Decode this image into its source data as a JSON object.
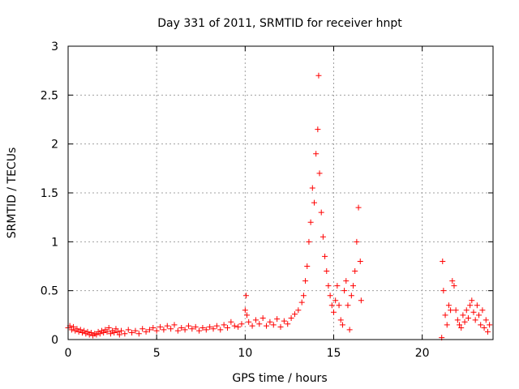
{
  "chart_data": {
    "type": "scatter",
    "title": "Day 331 of 2011, SRMTID for receiver hnpt",
    "xlabel": "GPS time / hours",
    "ylabel": "SRMTID / TECUs",
    "xlim": [
      0,
      24
    ],
    "ylim": [
      0,
      3
    ],
    "x_ticks": [
      0,
      5,
      10,
      15,
      20
    ],
    "y_ticks": [
      0,
      0.5,
      1,
      1.5,
      2,
      2.5,
      3
    ],
    "x_tick_labels": [
      "0",
      "5",
      "10",
      "15",
      "20"
    ],
    "y_tick_labels": [
      "0",
      "0.5",
      "1",
      "1.5",
      "2",
      "2.5",
      "3"
    ],
    "grid": true,
    "marker": "+",
    "series": [
      {
        "color": "#ff0000",
        "points": [
          [
            0.0,
            0.12
          ],
          [
            0.1,
            0.14
          ],
          [
            0.2,
            0.1
          ],
          [
            0.3,
            0.13
          ],
          [
            0.4,
            0.09
          ],
          [
            0.5,
            0.11
          ],
          [
            0.6,
            0.08
          ],
          [
            0.7,
            0.1
          ],
          [
            0.8,
            0.07
          ],
          [
            0.9,
            0.09
          ],
          [
            1.0,
            0.06
          ],
          [
            1.1,
            0.08
          ],
          [
            1.2,
            0.05
          ],
          [
            1.3,
            0.07
          ],
          [
            1.4,
            0.04
          ],
          [
            1.5,
            0.06
          ],
          [
            1.6,
            0.05
          ],
          [
            1.7,
            0.08
          ],
          [
            1.8,
            0.06
          ],
          [
            1.9,
            0.09
          ],
          [
            2.0,
            0.07
          ],
          [
            2.1,
            0.1
          ],
          [
            2.2,
            0.08
          ],
          [
            2.3,
            0.12
          ],
          [
            2.4,
            0.06
          ],
          [
            2.5,
            0.09
          ],
          [
            2.6,
            0.07
          ],
          [
            2.7,
            0.11
          ],
          [
            2.8,
            0.08
          ],
          [
            2.9,
            0.05
          ],
          [
            3.0,
            0.09
          ],
          [
            3.2,
            0.06
          ],
          [
            3.4,
            0.1
          ],
          [
            3.6,
            0.07
          ],
          [
            3.8,
            0.09
          ],
          [
            4.0,
            0.06
          ],
          [
            4.2,
            0.11
          ],
          [
            4.4,
            0.08
          ],
          [
            4.6,
            0.1
          ],
          [
            4.8,
            0.12
          ],
          [
            5.0,
            0.09
          ],
          [
            5.2,
            0.13
          ],
          [
            5.4,
            0.1
          ],
          [
            5.6,
            0.14
          ],
          [
            5.8,
            0.11
          ],
          [
            6.0,
            0.15
          ],
          [
            6.2,
            0.09
          ],
          [
            6.4,
            0.12
          ],
          [
            6.6,
            0.1
          ],
          [
            6.8,
            0.14
          ],
          [
            7.0,
            0.11
          ],
          [
            7.2,
            0.13
          ],
          [
            7.4,
            0.09
          ],
          [
            7.6,
            0.12
          ],
          [
            7.8,
            0.1
          ],
          [
            8.0,
            0.13
          ],
          [
            8.2,
            0.11
          ],
          [
            8.4,
            0.14
          ],
          [
            8.6,
            0.1
          ],
          [
            8.8,
            0.15
          ],
          [
            9.0,
            0.12
          ],
          [
            9.2,
            0.18
          ],
          [
            9.4,
            0.14
          ],
          [
            9.6,
            0.13
          ],
          [
            9.8,
            0.16
          ],
          [
            10.0,
            0.3
          ],
          [
            10.05,
            0.45
          ],
          [
            10.1,
            0.25
          ],
          [
            10.2,
            0.18
          ],
          [
            10.4,
            0.14
          ],
          [
            10.6,
            0.2
          ],
          [
            10.8,
            0.16
          ],
          [
            11.0,
            0.22
          ],
          [
            11.2,
            0.14
          ],
          [
            11.4,
            0.18
          ],
          [
            11.6,
            0.15
          ],
          [
            11.8,
            0.21
          ],
          [
            12.0,
            0.13
          ],
          [
            12.2,
            0.19
          ],
          [
            12.4,
            0.16
          ],
          [
            12.6,
            0.22
          ],
          [
            12.8,
            0.26
          ],
          [
            13.0,
            0.3
          ],
          [
            13.2,
            0.38
          ],
          [
            13.3,
            0.45
          ],
          [
            13.4,
            0.6
          ],
          [
            13.5,
            0.75
          ],
          [
            13.6,
            1.0
          ],
          [
            13.7,
            1.2
          ],
          [
            13.8,
            1.55
          ],
          [
            13.9,
            1.4
          ],
          [
            14.0,
            1.9
          ],
          [
            14.1,
            2.15
          ],
          [
            14.15,
            2.7
          ],
          [
            14.2,
            1.7
          ],
          [
            14.3,
            1.3
          ],
          [
            14.4,
            1.05
          ],
          [
            14.5,
            0.85
          ],
          [
            14.6,
            0.7
          ],
          [
            14.7,
            0.55
          ],
          [
            14.8,
            0.45
          ],
          [
            14.9,
            0.35
          ],
          [
            15.0,
            0.28
          ],
          [
            15.1,
            0.4
          ],
          [
            15.2,
            0.55
          ],
          [
            15.3,
            0.35
          ],
          [
            15.4,
            0.2
          ],
          [
            15.5,
            0.15
          ],
          [
            15.6,
            0.5
          ],
          [
            15.7,
            0.6
          ],
          [
            15.8,
            0.35
          ],
          [
            15.9,
            0.1
          ],
          [
            16.0,
            0.45
          ],
          [
            16.1,
            0.55
          ],
          [
            16.2,
            0.7
          ],
          [
            16.3,
            1.0
          ],
          [
            16.4,
            1.35
          ],
          [
            16.5,
            0.8
          ],
          [
            16.55,
            0.4
          ],
          [
            21.1,
            0.02
          ],
          [
            21.15,
            0.8
          ],
          [
            21.2,
            0.5
          ],
          [
            21.3,
            0.25
          ],
          [
            21.4,
            0.15
          ],
          [
            21.5,
            0.35
          ],
          [
            21.6,
            0.3
          ],
          [
            21.7,
            0.6
          ],
          [
            21.8,
            0.55
          ],
          [
            21.9,
            0.3
          ],
          [
            22.0,
            0.2
          ],
          [
            22.1,
            0.15
          ],
          [
            22.2,
            0.12
          ],
          [
            22.3,
            0.25
          ],
          [
            22.4,
            0.18
          ],
          [
            22.5,
            0.3
          ],
          [
            22.6,
            0.22
          ],
          [
            22.7,
            0.35
          ],
          [
            22.8,
            0.4
          ],
          [
            22.9,
            0.28
          ],
          [
            23.0,
            0.2
          ],
          [
            23.1,
            0.35
          ],
          [
            23.2,
            0.25
          ],
          [
            23.3,
            0.15
          ],
          [
            23.4,
            0.3
          ],
          [
            23.5,
            0.12
          ],
          [
            23.6,
            0.2
          ],
          [
            23.7,
            0.08
          ],
          [
            23.8,
            0.15
          ]
        ]
      }
    ]
  }
}
